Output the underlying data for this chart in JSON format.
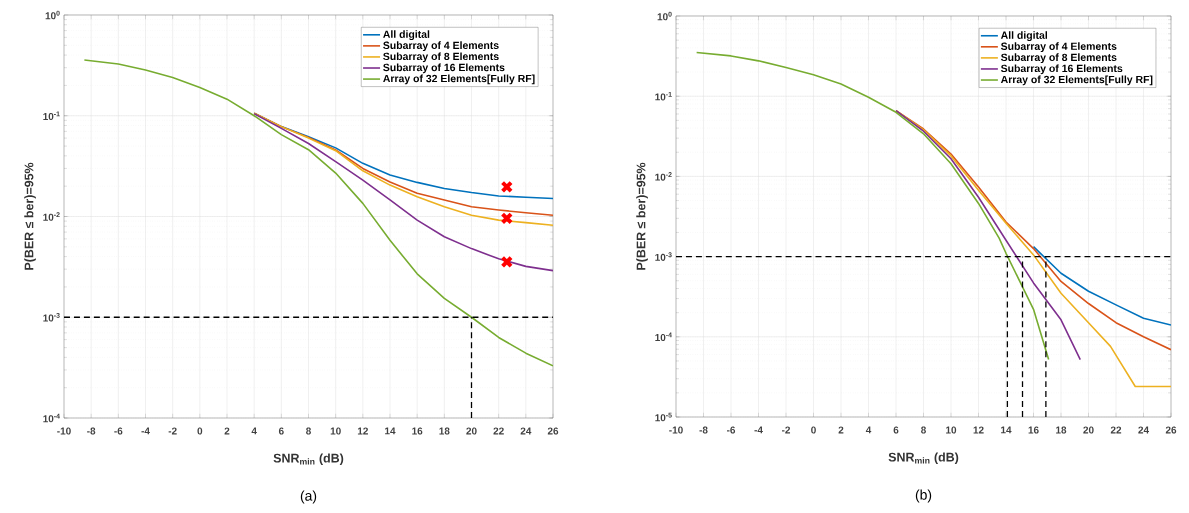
{
  "chart_data": [
    {
      "type": "line",
      "xlabel": "SNR$_{min}$ (dB)",
      "ylabel": "P(BER ≤ ber)=95%",
      "annotations": [
        "(a)"
      ],
      "log": "y",
      "grid": true,
      "legend": "top right",
      "xlim": [
        -10,
        26
      ],
      "xticks": [
        -10,
        -8,
        -6,
        -4,
        -2,
        0,
        2,
        4,
        6,
        8,
        10,
        12,
        14,
        16,
        18,
        20,
        22,
        24,
        26
      ],
      "ylim": [
        0.0001,
        1
      ],
      "yticks": [
        {
          "value": 0.0001,
          "label": "10$^{-4}$"
        },
        {
          "value": 0.001,
          "label": "10$^{-3}$"
        },
        {
          "value": 0.01,
          "label": "10$^{-2}$"
        },
        {
          "value": 0.1,
          "label": "10$^{-1}$"
        },
        {
          "value": 1,
          "label": "10$^{0}$"
        }
      ],
      "x": [
        -8.5,
        -6,
        -4,
        -2,
        0,
        2,
        4,
        6,
        8,
        10,
        12,
        14,
        16,
        18,
        20,
        22,
        24,
        26
      ],
      "series": [
        {
          "name": "All digital",
          "color": "#0072bd",
          "values": [
            null,
            null,
            null,
            null,
            null,
            null,
            0.106,
            0.078,
            0.062,
            0.048,
            0.0337,
            0.0258,
            0.0218,
            0.019,
            0.0173,
            0.016,
            0.0155,
            0.0151
          ]
        },
        {
          "name": "Subarray of 4 Elements",
          "color": "#d95319",
          "values": [
            null,
            null,
            null,
            null,
            null,
            null,
            0.106,
            0.078,
            0.061,
            0.0457,
            0.03,
            0.022,
            0.017,
            0.0146,
            0.0125,
            0.0116,
            0.0109,
            0.0103
          ]
        },
        {
          "name": "Subarray of 8 Elements",
          "color": "#edb120",
          "values": [
            null,
            null,
            null,
            null,
            null,
            null,
            0.106,
            0.078,
            0.06,
            0.045,
            0.0284,
            0.0205,
            0.0157,
            0.0125,
            0.0103,
            0.0092,
            0.0087,
            0.0082
          ]
        },
        {
          "name": "Subarray of 16 Elements",
          "color": "#7e2f8e",
          "values": [
            null,
            null,
            null,
            null,
            null,
            null,
            0.105,
            0.075,
            0.053,
            0.035,
            0.023,
            0.0146,
            0.0092,
            0.0063,
            0.0048,
            0.0038,
            0.0032,
            0.0029
          ]
        },
        {
          "name": "Array of 32 Elements[Fully RF]",
          "color": "#77ac30",
          "values": [
            0.357,
            0.326,
            0.284,
            0.24,
            0.191,
            0.146,
            0.1,
            0.065,
            0.046,
            0.027,
            0.0135,
            0.0058,
            0.0027,
            0.00154,
            0.001,
            0.00063,
            0.00044,
            0.00033
          ]
        },
        {
          "type": "scatter",
          "marker": "cross",
          "color": "#ff0000",
          "x": [
            22.6,
            22.6,
            22.6
          ],
          "values": [
            0.0197,
            0.0096,
            0.00355
          ]
        }
      ],
      "ref_lines": [
        {
          "axis": "y",
          "value": 0.001,
          "color": "#000000",
          "line_style": "dashed"
        },
        {
          "axis": "x",
          "value": 20,
          "color": "#000000",
          "line_style": "dashed"
        }
      ]
    },
    {
      "type": "line",
      "xlabel": "SNR$_{min}$ (dB)",
      "ylabel": "P(BER ≤ ber)=95%",
      "annotations": [
        "(b)"
      ],
      "log": "y",
      "grid": true,
      "legend": "top right",
      "xlim": [
        -10,
        26
      ],
      "xticks": [
        -10,
        -8,
        -6,
        -4,
        -2,
        0,
        2,
        4,
        6,
        8,
        10,
        12,
        14,
        16,
        18,
        20,
        22,
        24,
        26
      ],
      "ylim": [
        1e-05,
        1
      ],
      "yticks": [
        {
          "value": 1e-05,
          "label": "10$^{-5}$"
        },
        {
          "value": 0.0001,
          "label": "10$^{-4}$"
        },
        {
          "value": 0.001,
          "label": "10$^{-3}$"
        },
        {
          "value": 0.01,
          "label": "10$^{-2}$"
        },
        {
          "value": 0.1,
          "label": "10$^{-1}$"
        },
        {
          "value": 1,
          "label": "10$^{0}$"
        }
      ],
      "series": [
        {
          "name": "All digital",
          "color": "#0072bd",
          "x": [
            16,
            18,
            20,
            22,
            24,
            26
          ],
          "values": [
            0.00133,
            0.00062,
            0.00037,
            0.00025,
            0.00017,
            0.00014
          ]
        },
        {
          "name": "Subarray of 4 Elements",
          "color": "#d95319",
          "x": [
            6,
            8,
            10,
            12,
            14,
            16,
            18,
            20,
            22,
            24,
            26
          ],
          "values": [
            0.066,
            0.039,
            0.019,
            0.0074,
            0.0027,
            0.00126,
            0.00049,
            0.00026,
            0.00015,
            0.0001,
            6.9e-05
          ]
        },
        {
          "name": "Subarray of 8 Elements",
          "color": "#edb120",
          "x": [
            6,
            8,
            10,
            12,
            14,
            16,
            18,
            20,
            21.6,
            23.4,
            26
          ],
          "values": [
            0.066,
            0.038,
            0.018,
            0.0067,
            0.0026,
            0.00105,
            0.00035,
            0.00015,
            7.6e-05,
            2.4e-05,
            2.4e-05
          ]
        },
        {
          "name": "Subarray of 16 Elements",
          "color": "#7e2f8e",
          "x": [
            6,
            8,
            10,
            12,
            14,
            16,
            18,
            19.4
          ],
          "values": [
            0.066,
            0.0366,
            0.0166,
            0.0055,
            0.0016,
            0.00047,
            0.000163,
            5.2e-05
          ]
        },
        {
          "name": "Array of 32 Elements[Fully RF]",
          "color": "#77ac30",
          "x": [
            -8.5,
            -6,
            -4,
            -2,
            0,
            2,
            4,
            6,
            8,
            10,
            12,
            13.5,
            14,
            16,
            17.1
          ],
          "values": [
            0.35,
            0.318,
            0.276,
            0.228,
            0.185,
            0.142,
            0.097,
            0.063,
            0.034,
            0.0144,
            0.0046,
            0.0017,
            0.0011,
            0.00022,
            5.2e-05
          ]
        }
      ],
      "ref_lines": [
        {
          "axis": "y",
          "value": 0.001,
          "color": "#000000",
          "line_style": "dashed"
        },
        {
          "axis": "x",
          "value": 14.1,
          "color": "#000000",
          "line_style": "dashed"
        },
        {
          "axis": "x",
          "value": 15.2,
          "color": "#000000",
          "line_style": "dashed"
        },
        {
          "axis": "x",
          "value": 16.9,
          "color": "#000000",
          "line_style": "dashed"
        }
      ]
    }
  ]
}
